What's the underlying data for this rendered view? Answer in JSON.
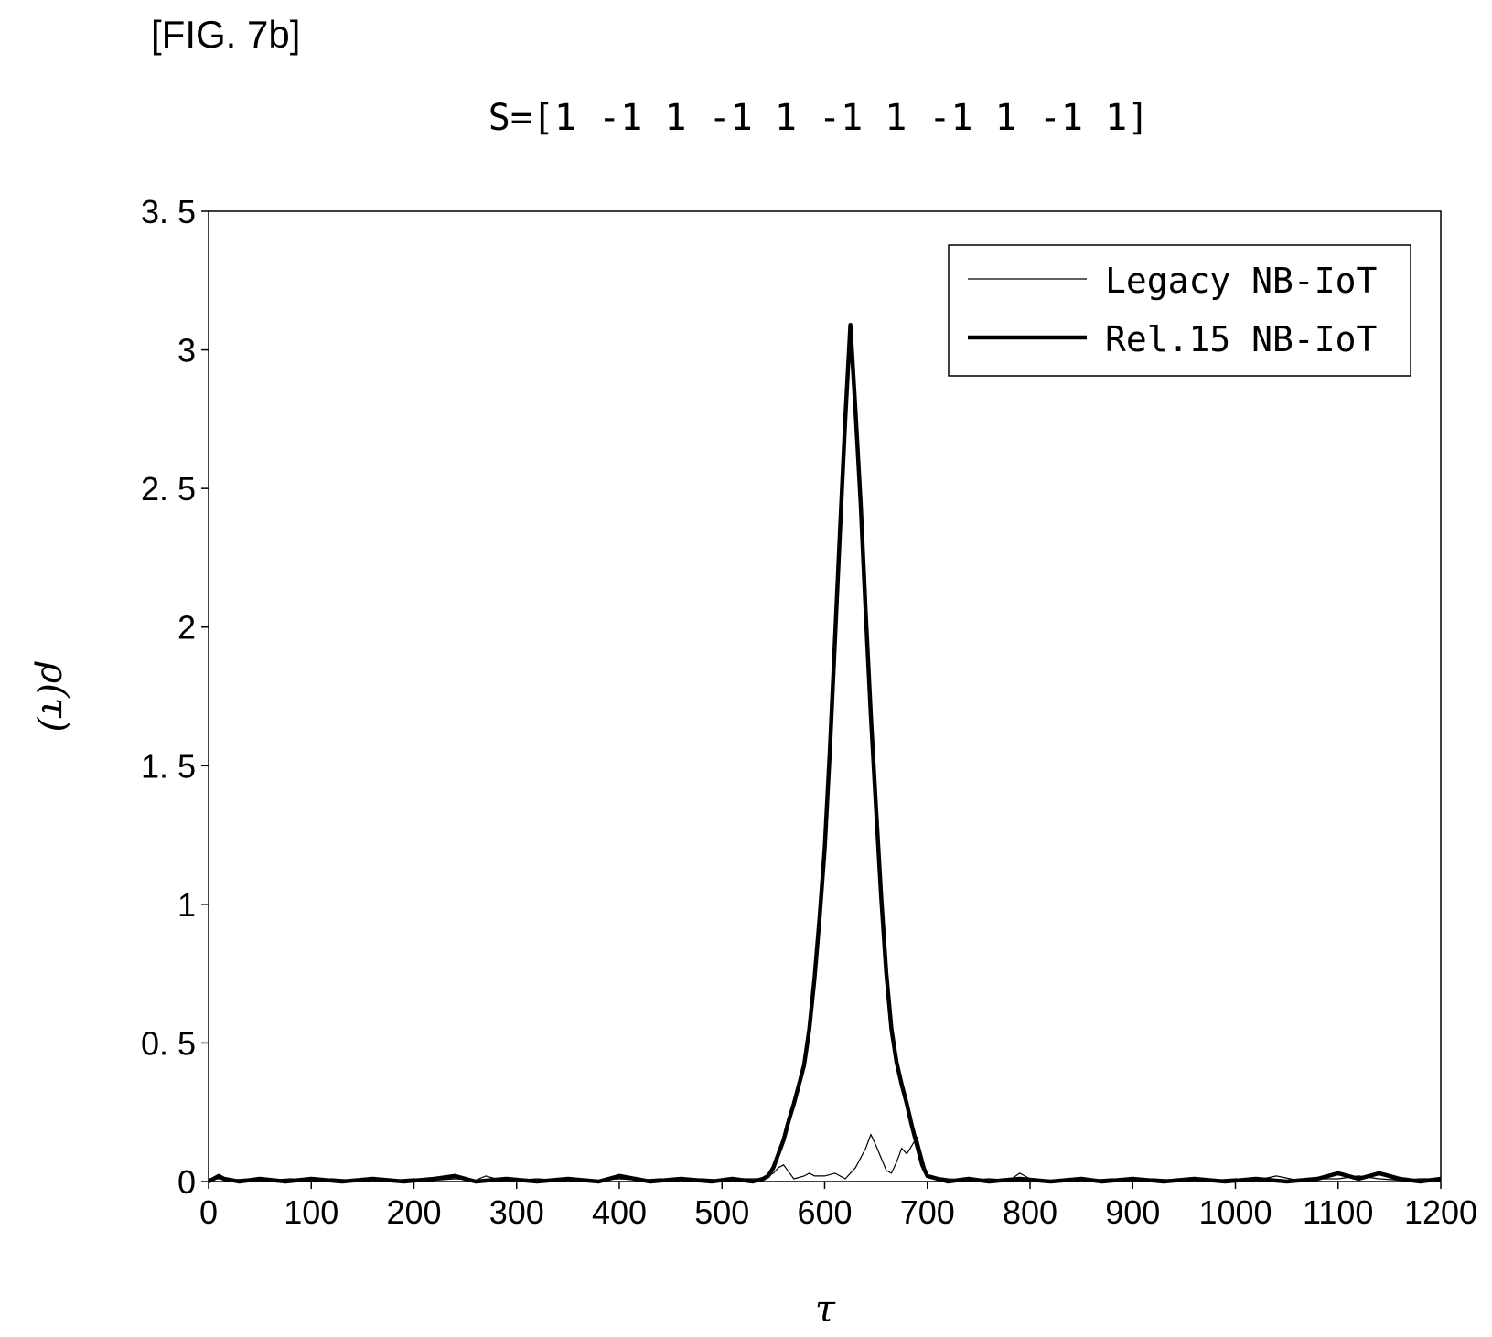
{
  "figure_label": "[FIG. 7b]",
  "chart_data": {
    "type": "line",
    "title": "S=[1 -1 1 -1 1 -1 1 -1 1 -1 1]",
    "xlabel": "τ",
    "ylabel": "ρ(τ)",
    "xlim": [
      0,
      1200
    ],
    "ylim": [
      0,
      3.5
    ],
    "x_ticks": [
      0,
      100,
      200,
      300,
      400,
      500,
      600,
      700,
      800,
      900,
      1000,
      1100,
      1200
    ],
    "y_ticks": [
      0,
      0.5,
      1,
      1.5,
      2,
      2.5,
      3,
      3.5
    ],
    "y_tick_labels": [
      "0",
      "0. 5",
      "1",
      "1. 5",
      "2",
      "2. 5",
      "3",
      "3. 5"
    ],
    "grid": false,
    "legend_position": "top-right",
    "series": [
      {
        "name": "Legacy NB-IoT",
        "style": "thin",
        "x": [
          0,
          10,
          20,
          40,
          60,
          80,
          100,
          120,
          140,
          160,
          180,
          200,
          220,
          240,
          260,
          270,
          280,
          300,
          320,
          340,
          360,
          380,
          400,
          420,
          440,
          460,
          480,
          500,
          520,
          540,
          550,
          555,
          560,
          570,
          580,
          585,
          590,
          600,
          610,
          615,
          620,
          630,
          640,
          645,
          650,
          660,
          665,
          670,
          675,
          680,
          685,
          690,
          700,
          720,
          740,
          760,
          780,
          790,
          800,
          820,
          840,
          860,
          880,
          900,
          920,
          940,
          960,
          980,
          1000,
          1020,
          1040,
          1060,
          1080,
          1100,
          1120,
          1140,
          1160,
          1180,
          1200
        ],
        "y": [
          0.01,
          0.01,
          0.005,
          0.01,
          0.005,
          0.01,
          0.005,
          0.01,
          0.005,
          0.01,
          0.005,
          0.01,
          0.005,
          0.01,
          0.005,
          0.02,
          0.01,
          0.005,
          0.01,
          0.005,
          0.01,
          0.005,
          0.01,
          0.005,
          0.01,
          0.005,
          0.01,
          0.005,
          0.01,
          0.01,
          0.03,
          0.05,
          0.06,
          0.01,
          0.02,
          0.03,
          0.02,
          0.02,
          0.03,
          0.02,
          0.01,
          0.05,
          0.12,
          0.17,
          0.13,
          0.04,
          0.03,
          0.07,
          0.12,
          0.1,
          0.13,
          0.16,
          0.02,
          0.01,
          0.005,
          0.01,
          0.005,
          0.03,
          0.01,
          0.005,
          0.01,
          0.005,
          0.01,
          0.005,
          0.01,
          0.005,
          0.01,
          0.005,
          0.01,
          0.005,
          0.02,
          0.005,
          0.01,
          0.01,
          0.02,
          0.01,
          0.005,
          0.01,
          0.01
        ]
      },
      {
        "name": "Rel.15 NB-IoT",
        "style": "thick",
        "x": [
          0,
          10,
          15,
          30,
          50,
          75,
          100,
          130,
          160,
          190,
          220,
          240,
          260,
          290,
          320,
          350,
          380,
          400,
          430,
          460,
          490,
          510,
          530,
          540,
          545,
          550,
          555,
          560,
          565,
          570,
          575,
          580,
          585,
          590,
          595,
          600,
          605,
          610,
          615,
          620,
          625,
          630,
          635,
          640,
          645,
          650,
          655,
          660,
          665,
          670,
          675,
          680,
          685,
          690,
          695,
          700,
          710,
          720,
          740,
          760,
          790,
          820,
          850,
          870,
          900,
          930,
          960,
          990,
          1020,
          1050,
          1080,
          1100,
          1120,
          1140,
          1160,
          1180,
          1200
        ],
        "y": [
          0.0,
          0.02,
          0.01,
          0.0,
          0.01,
          0.0,
          0.01,
          0.0,
          0.01,
          0.0,
          0.01,
          0.02,
          0.0,
          0.01,
          0.0,
          0.01,
          0.0,
          0.02,
          0.0,
          0.01,
          0.0,
          0.01,
          0.0,
          0.01,
          0.02,
          0.05,
          0.1,
          0.15,
          0.22,
          0.28,
          0.35,
          0.42,
          0.55,
          0.73,
          0.95,
          1.2,
          1.55,
          1.95,
          2.35,
          2.75,
          3.09,
          2.78,
          2.45,
          2.05,
          1.68,
          1.35,
          1.03,
          0.75,
          0.55,
          0.43,
          0.35,
          0.28,
          0.2,
          0.13,
          0.06,
          0.02,
          0.01,
          0.0,
          0.01,
          0.0,
          0.01,
          0.0,
          0.01,
          0.0,
          0.01,
          0.0,
          0.01,
          0.0,
          0.01,
          0.0,
          0.01,
          0.03,
          0.01,
          0.03,
          0.01,
          0.0,
          0.01
        ]
      }
    ]
  }
}
